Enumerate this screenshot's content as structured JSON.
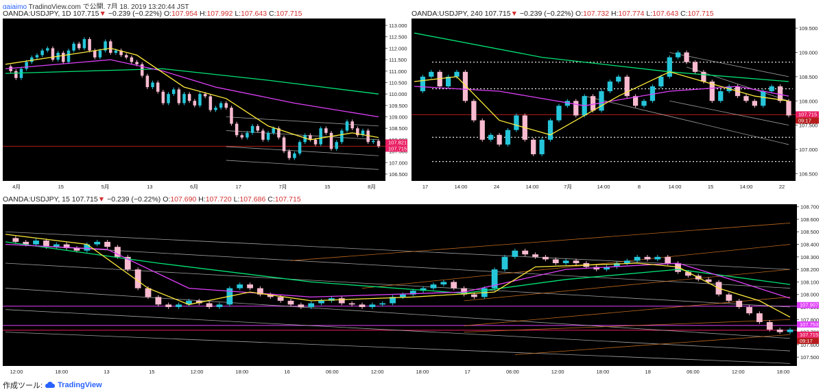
{
  "header": {
    "user": "gajaimo",
    "text": "TradingView.com で公開, 7月 18, 2019 13:20:44 JST"
  },
  "footer": {
    "made_with": "作成ツール:",
    "brand": "TradingView",
    "icon": "tradingview-cloud-icon"
  },
  "colors": {
    "up": "#26c6da",
    "down": "#f8bbd0",
    "ma_fast": "#ffeb3b",
    "ma_mid": "#e040fb",
    "ma_slow": "#00e676",
    "channel": "#bdbdbd",
    "orange": "#e07b24",
    "dotted": "#ffffff",
    "price": "#e91e63"
  },
  "chart_data": [
    {
      "id": "daily",
      "type": "candlestick",
      "symbol": "OANDA:USDJPY, 1D",
      "last": "107.715",
      "change": "−0.239 (−0.22%)",
      "o": "107.954",
      "h": "107.992",
      "l": "107.643",
      "c": "107.715",
      "ylim": [
        106.2,
        113.3
      ],
      "yticks": [
        "113.000",
        "112.500",
        "112.000",
        "111.500",
        "111.000",
        "110.500",
        "110.000",
        "109.500",
        "109.000",
        "108.500",
        "108.000",
        "107.500",
        "107.000",
        "106.500"
      ],
      "xticks": [
        "4月",
        "15",
        "5月",
        "13",
        "6月",
        "17",
        "7月",
        "15",
        "8月"
      ],
      "price_labels": [
        "107.821",
        "107.715"
      ],
      "path": [
        111.2,
        111.0,
        110.7,
        111.1,
        111.4,
        111.6,
        111.7,
        111.9,
        112.0,
        111.5,
        111.8,
        111.4,
        111.9,
        112.2,
        112.0,
        112.4,
        111.9,
        111.6,
        111.9,
        112.3,
        111.8,
        111.9,
        111.7,
        111.6,
        111.4,
        111.3,
        110.8,
        110.3,
        110.5,
        110.1,
        109.6,
        110.0,
        110.2,
        109.6,
        110.0,
        109.7,
        109.5,
        110.0,
        109.9,
        109.3,
        109.4,
        109.6,
        109.4,
        108.7,
        108.2,
        108.1,
        108.3,
        108.6,
        108.4,
        108.0,
        108.3,
        108.5,
        108.1,
        107.5,
        107.2,
        107.4,
        107.9,
        108.2,
        108.0,
        107.8,
        108.5,
        108.3,
        107.6,
        107.9,
        108.4,
        108.8,
        108.5,
        108.2,
        108.4,
        107.9,
        107.95,
        107.72
      ],
      "ma_fast": [
        [
          0,
          111.3
        ],
        [
          20,
          112.0
        ],
        [
          25,
          111.7
        ],
        [
          34,
          110.3
        ],
        [
          42,
          109.8
        ],
        [
          50,
          108.6
        ],
        [
          58,
          108.0
        ],
        [
          66,
          108.3
        ],
        [
          71,
          108.1
        ]
      ],
      "ma_mid": [
        [
          0,
          111.1
        ],
        [
          20,
          111.5
        ],
        [
          30,
          111.0
        ],
        [
          40,
          110.3
        ],
        [
          55,
          109.6
        ],
        [
          71,
          109.0
        ]
      ],
      "ma_slow": [
        [
          0,
          110.9
        ],
        [
          30,
          111.1
        ],
        [
          50,
          110.6
        ],
        [
          71,
          110.0
        ]
      ],
      "channels": [
        [
          [
            42,
            109.0
          ],
          [
            71,
            108.6
          ]
        ],
        [
          [
            42,
            108.4
          ],
          [
            71,
            108.0
          ]
        ],
        [
          [
            42,
            107.7
          ],
          [
            71,
            107.3
          ]
        ],
        [
          [
            42,
            107.1
          ],
          [
            71,
            106.7
          ]
        ]
      ]
    },
    {
      "id": "h4",
      "type": "candlestick",
      "symbol": "OANDA:USDJPY, 240",
      "last": "107.715",
      "change": "−0.239 (−0.22%)",
      "o": "107.732",
      "h": "107.774",
      "l": "107.643",
      "c": "107.715",
      "ylim": [
        106.35,
        109.7
      ],
      "yticks": [
        "109.500",
        "109.000",
        "108.500",
        "108.000",
        "107.500",
        "107.000",
        "106.500"
      ],
      "xticks": [
        "17",
        "14:00",
        "24",
        "14:00",
        "7月",
        "14:00",
        "8",
        "14:00",
        "15",
        "14:00",
        "22"
      ],
      "price_labels": [
        "107.715",
        "09:17"
      ],
      "path": [
        108.2,
        108.5,
        108.6,
        108.3,
        108.5,
        108.6,
        108.0,
        107.6,
        107.2,
        107.3,
        107.1,
        107.4,
        107.7,
        107.2,
        106.9,
        107.2,
        107.6,
        107.9,
        108.0,
        107.7,
        108.1,
        107.8,
        108.2,
        108.4,
        108.5,
        108.1,
        107.9,
        108.0,
        108.3,
        108.5,
        108.9,
        109.0,
        108.8,
        108.6,
        108.4,
        108.0,
        108.2,
        108.3,
        108.1,
        108.0,
        107.9,
        108.2,
        108.3,
        108.0,
        107.7
      ],
      "ma_fast": [
        [
          0,
          108.4
        ],
        [
          5,
          108.5
        ],
        [
          10,
          107.6
        ],
        [
          16,
          107.3
        ],
        [
          24,
          108.1
        ],
        [
          30,
          108.6
        ],
        [
          34,
          108.4
        ],
        [
          40,
          108.1
        ],
        [
          44,
          108.0
        ]
      ],
      "ma_mid": [
        [
          0,
          108.3
        ],
        [
          10,
          108.2
        ],
        [
          20,
          107.9
        ],
        [
          30,
          108.2
        ],
        [
          38,
          108.3
        ],
        [
          44,
          108.1
        ]
      ],
      "ma_slow": [
        [
          0,
          109.4
        ],
        [
          15,
          108.9
        ],
        [
          30,
          108.6
        ],
        [
          44,
          108.4
        ]
      ],
      "dotted": [
        108.8,
        108.25,
        107.25,
        106.75
      ],
      "channels": [
        [
          [
            30,
            109.0
          ],
          [
            44,
            108.5
          ]
        ],
        [
          [
            32,
            108.7
          ],
          [
            44,
            108.0
          ]
        ],
        [
          [
            30,
            108.0
          ],
          [
            44,
            107.5
          ]
        ],
        [
          [
            20,
            108.1
          ],
          [
            44,
            107.1
          ]
        ]
      ]
    },
    {
      "id": "m15",
      "type": "candlestick",
      "symbol": "OANDA:USDJPY, 15",
      "last": "107.715",
      "change": "−0.239 (−0.22%)",
      "o": "107.690",
      "h": "107.720",
      "l": "107.686",
      "c": "107.715",
      "ylim": [
        107.43,
        108.72
      ],
      "yticks": [
        "108.700",
        "108.600",
        "108.500",
        "108.400",
        "108.300",
        "108.200",
        "108.100",
        "108.000",
        "107.900",
        "107.800",
        "107.700",
        "107.600",
        "107.500"
      ],
      "xticks": [
        "12:00",
        "18:00",
        "13",
        "15",
        "12:00",
        "18:00",
        "16",
        "06:00",
        "12:00",
        "18:00",
        "17",
        "06:00",
        "12:00",
        "18:00",
        "18",
        "06:00",
        "12:00",
        "18:00"
      ],
      "price_labels": [
        "107.907",
        "107.753",
        "107.715",
        "09:17"
      ],
      "path": [
        108.45,
        108.42,
        108.4,
        108.43,
        108.38,
        108.4,
        108.37,
        108.35,
        108.4,
        108.42,
        108.38,
        108.3,
        108.2,
        108.05,
        107.98,
        107.92,
        107.9,
        107.92,
        107.95,
        107.93,
        107.9,
        107.92,
        108.05,
        108.08,
        108.05,
        108.0,
        107.98,
        107.95,
        107.92,
        107.9,
        107.93,
        107.95,
        107.97,
        107.93,
        107.92,
        107.9,
        107.92,
        107.93,
        107.98,
        108.0,
        108.03,
        108.05,
        108.08,
        108.1,
        108.05,
        108.0,
        107.98,
        108.05,
        108.2,
        108.3,
        108.35,
        108.32,
        108.3,
        108.28,
        108.25,
        108.27,
        108.25,
        108.22,
        108.2,
        108.22,
        108.25,
        108.27,
        108.3,
        108.28,
        108.3,
        108.25,
        108.18,
        108.15,
        108.12,
        108.1,
        108.0,
        107.95,
        107.9,
        107.85,
        107.78,
        107.72,
        107.7,
        107.72
      ],
      "ma_fast": [
        [
          0,
          108.48
        ],
        [
          8,
          108.4
        ],
        [
          14,
          108.05
        ],
        [
          18,
          107.92
        ],
        [
          24,
          108.02
        ],
        [
          30,
          107.95
        ],
        [
          40,
          107.98
        ],
        [
          48,
          108.02
        ],
        [
          52,
          108.22
        ],
        [
          62,
          108.25
        ],
        [
          66,
          108.22
        ],
        [
          70,
          108.05
        ],
        [
          74,
          107.95
        ],
        [
          77,
          107.82
        ]
      ],
      "ma_mid": [
        [
          0,
          108.4
        ],
        [
          10,
          108.36
        ],
        [
          18,
          108.05
        ],
        [
          30,
          107.98
        ],
        [
          45,
          108.02
        ],
        [
          55,
          108.2
        ],
        [
          66,
          108.25
        ],
        [
          72,
          108.1
        ],
        [
          77,
          107.97
        ]
      ],
      "ma_slow": [
        [
          0,
          108.42
        ],
        [
          15,
          108.25
        ],
        [
          30,
          108.1
        ],
        [
          45,
          108.01
        ],
        [
          55,
          108.12
        ],
        [
          66,
          108.2
        ],
        [
          77,
          108.08
        ]
      ],
      "hlines": [
        [
          107.907,
          "#e040fb"
        ],
        [
          107.753,
          "#e040fb"
        ],
        [
          107.715,
          "#e91e63"
        ]
      ],
      "white_channels": [
        [
          [
            0,
            108.5
          ],
          [
            77,
            108.2
          ]
        ],
        [
          [
            0,
            108.4
          ],
          [
            77,
            108.05
          ]
        ],
        [
          [
            0,
            108.25
          ],
          [
            77,
            107.9
          ]
        ],
        [
          [
            0,
            108.05
          ],
          [
            77,
            107.65
          ]
        ],
        [
          [
            0,
            107.88
          ],
          [
            77,
            107.55
          ]
        ],
        [
          [
            0,
            107.7
          ],
          [
            77,
            107.45
          ]
        ]
      ],
      "orange_channels": [
        [
          [
            28,
            108.27
          ],
          [
            77,
            108.57
          ]
        ],
        [
          [
            35,
            108.05
          ],
          [
            77,
            108.4
          ]
        ],
        [
          [
            45,
            107.95
          ],
          [
            77,
            108.2
          ]
        ],
        [
          [
            45,
            107.75
          ],
          [
            77,
            107.98
          ]
        ],
        [
          [
            45,
            107.7
          ],
          [
            77,
            107.8
          ]
        ],
        [
          [
            50,
            107.52
          ],
          [
            77,
            107.68
          ]
        ]
      ]
    }
  ]
}
